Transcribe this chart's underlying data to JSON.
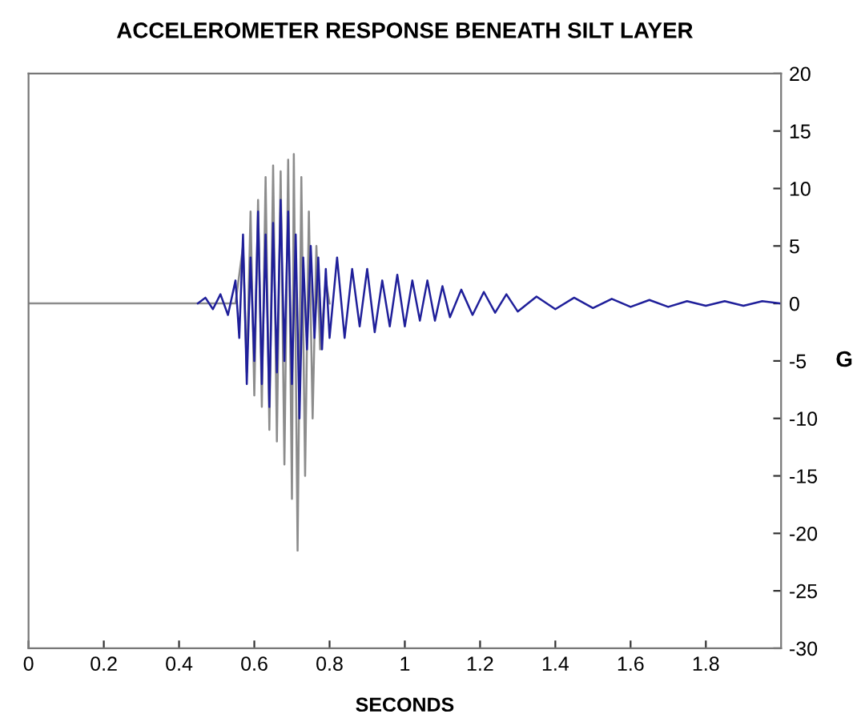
{
  "chart_data": {
    "type": "line",
    "title": "ACCELEROMETER RESPONSE BENEATH SILT LAYER",
    "xlabel": "SECONDS",
    "ylabel": "G",
    "xlim": [
      0,
      2
    ],
    "xticks": [
      0,
      0.2,
      0.4,
      0.6,
      0.8,
      1,
      1.2,
      1.4,
      1.6,
      1.8
    ],
    "ylim": [
      -30,
      20
    ],
    "yticks": [
      -30,
      -25,
      -20,
      -15,
      -10,
      -5,
      0,
      5,
      10,
      15,
      20
    ],
    "grid": false,
    "marker": "none",
    "line_style": "solid",
    "series": [
      {
        "color": "#8c8c8c",
        "x": [
          0,
          0.45,
          0.55,
          0.57,
          0.58,
          0.59,
          0.6,
          0.61,
          0.62,
          0.63,
          0.64,
          0.65,
          0.66,
          0.67,
          0.68,
          0.69,
          0.7,
          0.705,
          0.715,
          0.725,
          0.735,
          0.745,
          0.755,
          0.765,
          0.775,
          0.79,
          0.8
        ],
        "values": [
          0,
          0,
          0,
          5,
          -6,
          8,
          -8,
          9,
          -9,
          11,
          -11,
          12,
          -12,
          11.5,
          -14,
          12.5,
          -17,
          13,
          -21.5,
          11,
          -15,
          8,
          -10,
          5,
          -4,
          2,
          0
        ]
      },
      {
        "color": "#1f1f9a",
        "x": [
          0.45,
          0.47,
          0.49,
          0.51,
          0.53,
          0.55,
          0.56,
          0.57,
          0.58,
          0.59,
          0.6,
          0.61,
          0.62,
          0.63,
          0.64,
          0.65,
          0.66,
          0.67,
          0.68,
          0.69,
          0.7,
          0.71,
          0.72,
          0.73,
          0.74,
          0.75,
          0.76,
          0.77,
          0.78,
          0.79,
          0.8,
          0.82,
          0.84,
          0.86,
          0.88,
          0.9,
          0.92,
          0.94,
          0.96,
          0.98,
          1.0,
          1.02,
          1.04,
          1.06,
          1.08,
          1.1,
          1.12,
          1.15,
          1.18,
          1.21,
          1.24,
          1.27,
          1.3,
          1.35,
          1.4,
          1.45,
          1.5,
          1.55,
          1.6,
          1.65,
          1.7,
          1.75,
          1.8,
          1.85,
          1.9,
          1.95,
          2.0
        ],
        "values": [
          0,
          0.5,
          -0.5,
          0.8,
          -1,
          2,
          -3,
          6,
          -7,
          4,
          -5,
          8,
          -7,
          6,
          -9,
          7,
          -6,
          9,
          -5,
          8,
          -7,
          6,
          -10,
          4,
          -4,
          5,
          -3,
          4,
          -4,
          3,
          -3,
          4,
          -3,
          3,
          -2,
          3,
          -2.5,
          2,
          -2,
          2.5,
          -2,
          2,
          -1.5,
          2,
          -1.5,
          1.5,
          -1.2,
          1.2,
          -1,
          1,
          -0.8,
          0.8,
          -0.7,
          0.6,
          -0.5,
          0.5,
          -0.4,
          0.4,
          -0.3,
          0.3,
          -0.3,
          0.2,
          -0.2,
          0.2,
          -0.2,
          0.2,
          0
        ]
      }
    ]
  }
}
